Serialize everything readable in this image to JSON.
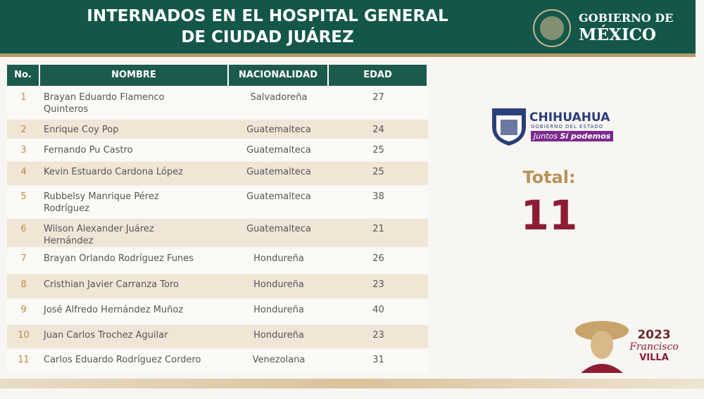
{
  "header": {
    "title": [
      "INTERNADOS EN EL HOSPITAL GENERAL",
      "DE CIUDAD JUÁREZ"
    ],
    "logo": [
      "GOBIERNO DE",
      "MÉXICO"
    ]
  },
  "table": {
    "columns": [
      "No.",
      "NOMBRE",
      "NACIONALIDAD",
      "EDAD"
    ],
    "rows": [
      {
        "no": 1,
        "nombre": [
          "Brayan Eduardo Flamenco",
          "Quinteros"
        ],
        "nacionalidad": "Salvadoreña",
        "edad": 27
      },
      {
        "no": 2,
        "nombre": [
          "Enrique Coy Pop"
        ],
        "nacionalidad": "Guatemalteca",
        "edad": 24
      },
      {
        "no": 3,
        "nombre": [
          "Fernando Pu Castro"
        ],
        "nacionalidad": "Guatemalteca",
        "edad": 25
      },
      {
        "no": 4,
        "nombre": [
          "Kevin Estuardo Cardona López"
        ],
        "nacionalidad": "Guatemalteca",
        "edad": 25
      },
      {
        "no": 5,
        "nombre": [
          "Rubbelsy Manrique Pérez",
          "Rodríguez"
        ],
        "nacionalidad": "Guatemalteca",
        "edad": 38
      },
      {
        "no": 6,
        "nombre": [
          "Wilson Alexander Juárez",
          "Hernández"
        ],
        "nacionalidad": "Guatemalteca",
        "edad": 21
      },
      {
        "no": 7,
        "nombre": [
          "Brayan Orlando Rodríguez Funes"
        ],
        "nacionalidad": "Hondureña",
        "edad": 26
      },
      {
        "no": 8,
        "nombre": [
          "Cristhian Javier Carranza Toro"
        ],
        "nacionalidad": "Hondureña",
        "edad": 23
      },
      {
        "no": 9,
        "nombre": [
          "José Alfredo Hernández Muñoz"
        ],
        "nacionalidad": "Hondureña",
        "edad": 40
      },
      {
        "no": 10,
        "nombre": [
          "Juan Carlos Trochez Aguilar"
        ],
        "nacionalidad": "Hondureña",
        "edad": 23
      },
      {
        "no": 11,
        "nombre": [
          "Carlos Eduardo Rodríguez Cordero"
        ],
        "nacionalidad": "Venezolana",
        "edad": 31
      }
    ]
  },
  "state_logo": {
    "name": "CHIHUAHUA",
    "subtitle": "GOBIERNO DEL ESTADO",
    "slogan": [
      "Juntos",
      "Sí podemos"
    ]
  },
  "total": {
    "label": "Total:",
    "value": 11
  },
  "villa_logo": {
    "year": "2023",
    "name": [
      "Francisco",
      "VILLA"
    ]
  }
}
